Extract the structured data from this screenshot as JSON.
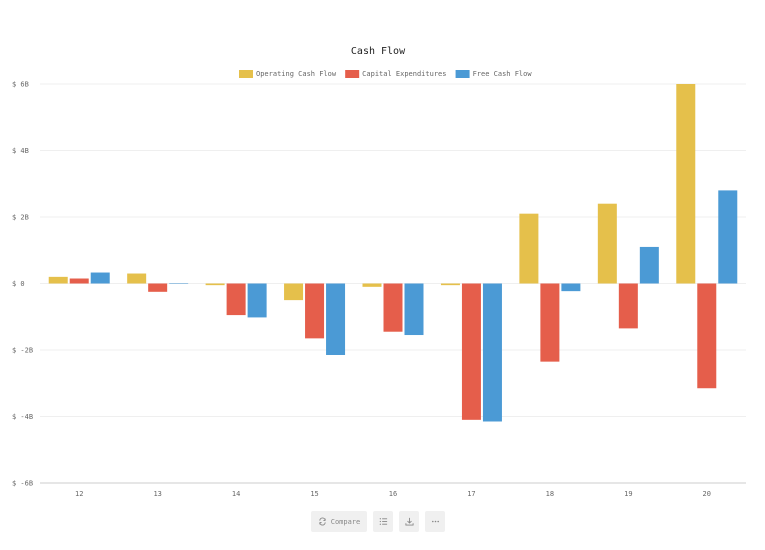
{
  "chart_data": {
    "type": "bar",
    "title": "Cash Flow",
    "categories": [
      "12",
      "13",
      "14",
      "15",
      "16",
      "17",
      "18",
      "19",
      "20"
    ],
    "series": [
      {
        "name": "Operating Cash Flow",
        "color": "#e5c04b",
        "values": [
          0.2,
          0.3,
          -0.05,
          -0.5,
          -0.1,
          -0.05,
          2.1,
          2.4,
          6.0
        ]
      },
      {
        "name": "Capital Expenditures",
        "color": "#e55e4b",
        "values": [
          0.15,
          -0.25,
          -0.95,
          -1.65,
          -1.45,
          -4.1,
          -2.35,
          -1.35,
          -3.15
        ]
      },
      {
        "name": "Free Cash Flow",
        "color": "#4b9ad5",
        "values": [
          0.33,
          0.0,
          -1.02,
          -2.15,
          -1.55,
          -4.15,
          -0.23,
          1.1,
          2.8
        ]
      }
    ],
    "ylim": [
      -6,
      6
    ],
    "yticks": [
      {
        "value": 6,
        "label": "$ 6B"
      },
      {
        "value": 4,
        "label": "$ 4B"
      },
      {
        "value": 2,
        "label": "$ 2B"
      },
      {
        "value": 0,
        "label": "$ 0"
      },
      {
        "value": -2,
        "label": "$ -2B"
      },
      {
        "value": -4,
        "label": "$ -4B"
      },
      {
        "value": -6,
        "label": "$ -6B"
      }
    ],
    "grid": true,
    "legend": "top-center",
    "xlabel": "",
    "ylabel": ""
  },
  "toolbar": {
    "compare_label": "Compare",
    "compare_icon": "refresh-icon",
    "list_icon": "list-icon",
    "download_icon": "download-icon",
    "more_icon": "more-icon"
  }
}
